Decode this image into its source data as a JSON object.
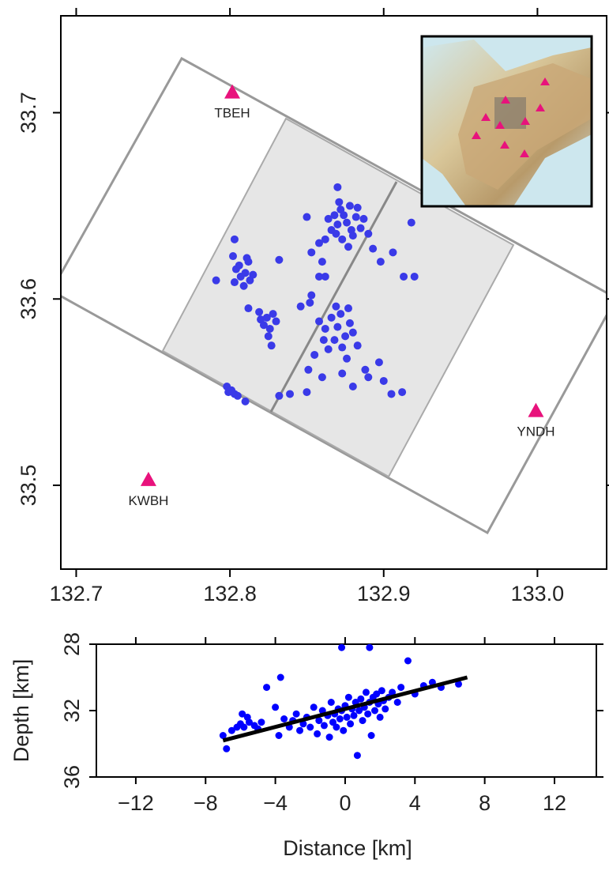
{
  "chart_data": [
    {
      "type": "scatter",
      "xlim": [
        132.69,
        133.045
      ],
      "ylim": [
        33.455,
        33.752
      ],
      "xticks": [
        132.7,
        132.8,
        132.9,
        {
          "value": 133,
          "label": "133.0"
        }
      ],
      "yticks": [
        33.5,
        33.6,
        33.7
      ],
      "series": [
        {
          "color": "#3a3ae8",
          "x": [
            132.868,
            132.872,
            132.878,
            132.882,
            132.885,
            132.88,
            132.873,
            132.866,
            132.87,
            132.876,
            132.879,
            132.874,
            132.883,
            132.864,
            132.887,
            132.871,
            132.877,
            132.862,
            132.89,
            132.869,
            132.87,
            132.858,
            132.85,
            132.853,
            132.893,
            132.898,
            132.862,
            132.86,
            132.906,
            132.92,
            132.913,
            132.918,
            132.866,
            132.872,
            132.878,
            132.875,
            132.868,
            132.862,
            132.87,
            132.88,
            132.864,
            132.873,
            132.858,
            132.877,
            132.883,
            132.869,
            132.861,
            132.876,
            132.852,
            132.846,
            132.855,
            132.851,
            132.86,
            132.873,
            132.88,
            132.89,
            132.9,
            132.905,
            132.912,
            132.897,
            132.888,
            132.858,
            132.853,
            132.85,
            132.839,
            132.832,
            132.806,
            132.81,
            132.813,
            132.807,
            132.804,
            132.812,
            132.815,
            132.809,
            132.803,
            132.811,
            132.803,
            132.802,
            132.791,
            132.832,
            132.812,
            132.819,
            132.824,
            132.828,
            132.822,
            132.826,
            132.83,
            132.82,
            132.825,
            132.827,
            132.798,
            132.801,
            132.803,
            132.805,
            132.799,
            132.81
          ],
          "y": [
            33.645,
            33.648,
            33.65,
            33.644,
            33.638,
            33.634,
            33.632,
            33.637,
            33.64,
            33.641,
            33.637,
            33.645,
            33.649,
            33.643,
            33.643,
            33.652,
            33.628,
            33.632,
            33.635,
            33.635,
            33.66,
            33.63,
            33.644,
            33.625,
            33.627,
            33.62,
            33.612,
            33.62,
            33.625,
            33.612,
            33.612,
            33.641,
            33.59,
            33.592,
            33.587,
            33.58,
            33.578,
            33.584,
            33.585,
            33.582,
            33.573,
            33.574,
            33.588,
            33.595,
            33.575,
            33.596,
            33.578,
            33.568,
            33.598,
            33.596,
            33.57,
            33.562,
            33.558,
            33.56,
            33.553,
            33.558,
            33.556,
            33.549,
            33.55,
            33.566,
            33.562,
            33.612,
            33.602,
            33.55,
            33.549,
            33.548,
            33.618,
            33.614,
            33.61,
            33.612,
            33.616,
            33.62,
            33.613,
            33.607,
            33.609,
            33.622,
            33.632,
            33.623,
            33.61,
            33.621,
            33.595,
            33.593,
            33.59,
            33.592,
            33.586,
            33.584,
            33.588,
            33.589,
            33.58,
            33.575,
            33.553,
            33.551,
            33.549,
            33.548,
            33.55,
            33.545
          ]
        }
      ],
      "stations": {
        "color": "#e8127c",
        "names": [
          "TBEH",
          "YNDH",
          "KWBH"
        ],
        "x": [
          132.8015,
          132.999,
          132.747
        ],
        "y": [
          33.711,
          33.54,
          33.503
        ]
      }
    },
    {
      "type": "scatter",
      "xlabel": "Distance [km]",
      "ylabel": "Depth [km]",
      "xlim": [
        -14.26,
        14.4
      ],
      "ylim": [
        28,
        36
      ],
      "invert_y": true,
      "xticks": [
        {
          "value": -12,
          "label": "−12"
        },
        {
          "value": -8,
          "label": "−8"
        },
        {
          "value": -4,
          "label": "−4"
        },
        0,
        4,
        8,
        12
      ],
      "yticks": [
        28,
        32,
        36
      ],
      "series": [
        {
          "color": "#0000ff",
          "x": [
            -6.8,
            -7.0,
            -6.5,
            -6.0,
            -5.8,
            -5.5,
            -5.2,
            -5.0,
            -4.8,
            -6.2,
            -5.6,
            -5.9,
            -4.5,
            -4.0,
            -3.8,
            -3.5,
            -3.2,
            -3.0,
            -2.8,
            -2.6,
            -2.4,
            -2.2,
            -2.0,
            -1.8,
            -1.6,
            -1.5,
            -1.3,
            -1.2,
            -1.0,
            -0.9,
            -0.8,
            -0.7,
            -0.6,
            -0.5,
            -0.4,
            -0.3,
            -0.2,
            -0.1,
            0,
            0.1,
            0.2,
            0.3,
            0.4,
            0.5,
            0.6,
            0.7,
            0.8,
            0.9,
            1.0,
            1.1,
            1.2,
            1.3,
            1.4,
            1.5,
            1.6,
            1.7,
            1.8,
            1.9,
            2.0,
            2.1,
            2.2,
            2.3,
            2.5,
            2.7,
            3.0,
            3.2,
            3.6,
            4.0,
            4.5,
            5.0,
            5.5,
            6.5,
            -0.2,
            1.4,
            -3.7
          ],
          "y": [
            34.3,
            33.5,
            33.2,
            32.8,
            33.0,
            32.7,
            32.9,
            33.1,
            32.7,
            33.0,
            32.4,
            32.2,
            30.6,
            31.8,
            33.5,
            32.5,
            33.0,
            32.6,
            32.2,
            33.2,
            32.8,
            32.4,
            33.0,
            31.8,
            33.4,
            32.6,
            32.0,
            32.9,
            32.3,
            33.6,
            31.5,
            32.7,
            32.2,
            33.0,
            31.9,
            32.5,
            32.0,
            33.2,
            31.7,
            32.4,
            31.2,
            32.8,
            31.9,
            32.3,
            31.5,
            34.7,
            32.0,
            31.3,
            32.6,
            31.8,
            30.9,
            32.2,
            31.5,
            33.5,
            31.2,
            32.0,
            31.0,
            31.6,
            32.4,
            30.8,
            31.4,
            31.9,
            31.2,
            30.9,
            31.5,
            30.6,
            29.0,
            31.0,
            30.5,
            30.3,
            30.6,
            30.4,
            28.2,
            28.2,
            30.0
          ]
        }
      ],
      "line": {
        "color": "#000000",
        "x": [
          -7.0,
          7.0
        ],
        "y": [
          33.8,
          30.0
        ]
      }
    }
  ]
}
